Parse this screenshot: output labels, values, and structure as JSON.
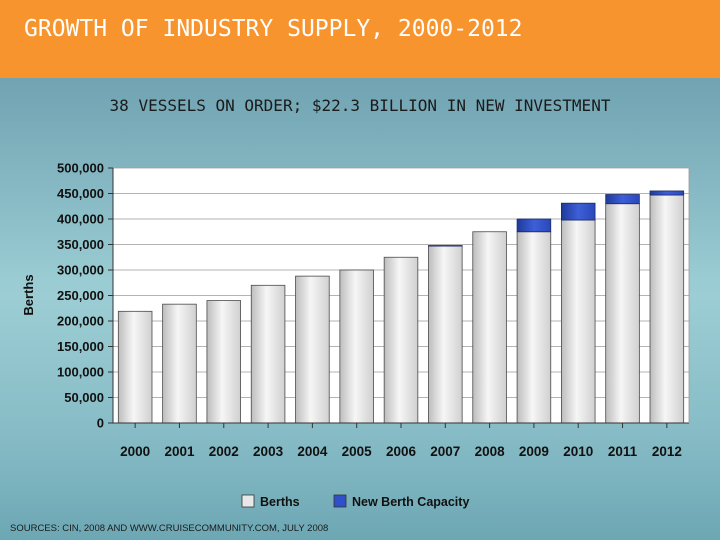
{
  "slide": {
    "title": "GROWTH OF INDUSTRY SUPPLY, 2000-2012",
    "subtitle": "38 VESSELS ON ORDER; $22.3 BILLION IN NEW INVESTMENT",
    "source": "SOURCES: CIN, 2008 AND WWW.CRUISECOMMUNITY.COM, JULY 2008"
  },
  "colors": {
    "header": "#f7942d",
    "berths_fill": "#e8e8e8",
    "new_capacity_fill": "#3050c8"
  },
  "chart_data": {
    "type": "bar",
    "stacked": true,
    "title": "",
    "xlabel": "",
    "ylabel": "Berths",
    "ylim": [
      0,
      500000
    ],
    "yticks": [
      "0",
      "50,000",
      "100,000",
      "150,000",
      "200,000",
      "250,000",
      "300,000",
      "350,000",
      "400,000",
      "450,000",
      "500,000"
    ],
    "categories": [
      "2000",
      "2001",
      "2002",
      "2003",
      "2004",
      "2005",
      "2006",
      "2007",
      "2008",
      "2009",
      "2010",
      "2011",
      "2012"
    ],
    "series": [
      {
        "name": "Berths",
        "values": [
          219000,
          233000,
          240000,
          270000,
          288000,
          300000,
          325000,
          347000,
          375000,
          375000,
          398000,
          430000,
          447000
        ]
      },
      {
        "name": "New Berth Capacity",
        "values": [
          0,
          0,
          0,
          0,
          0,
          0,
          0,
          1000,
          0,
          25000,
          33000,
          18000,
          8000
        ]
      }
    ],
    "grid": true,
    "legend": "bottom"
  }
}
